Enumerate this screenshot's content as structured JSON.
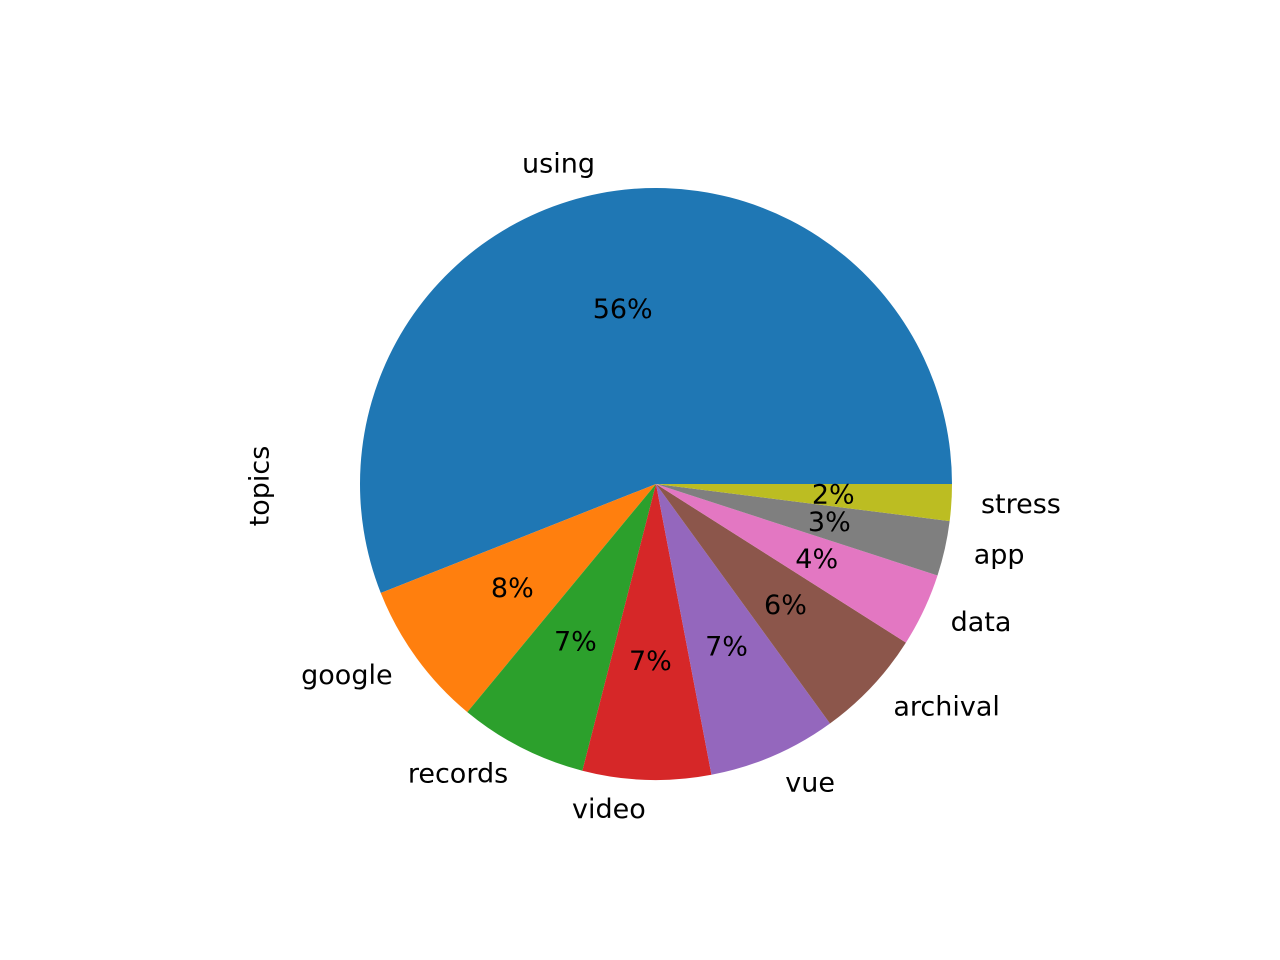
{
  "chart_data": {
    "type": "pie",
    "ylabel": "topics",
    "start_angle_deg": 0,
    "direction": "counterclockwise",
    "slices": [
      {
        "label": "using",
        "value": 56.0,
        "pct_label": "56%",
        "color": "#1f77b4"
      },
      {
        "label": "google",
        "value": 8.0,
        "pct_label": "8%",
        "color": "#ff7f0e"
      },
      {
        "label": "records",
        "value": 7.0,
        "pct_label": "7%",
        "color": "#2ca02c"
      },
      {
        "label": "video",
        "value": 7.0,
        "pct_label": "7%",
        "color": "#d62728"
      },
      {
        "label": "vue",
        "value": 7.0,
        "pct_label": "7%",
        "color": "#9467bd"
      },
      {
        "label": "archival",
        "value": 6.0,
        "pct_label": "6%",
        "color": "#8c564b"
      },
      {
        "label": "data",
        "value": 4.0,
        "pct_label": "4%",
        "color": "#e377c2"
      },
      {
        "label": "app",
        "value": 3.0,
        "pct_label": "3%",
        "color": "#7f7f7f"
      },
      {
        "label": "stress",
        "value": 2.0,
        "pct_label": "2%",
        "color": "#bcbd22"
      }
    ]
  }
}
